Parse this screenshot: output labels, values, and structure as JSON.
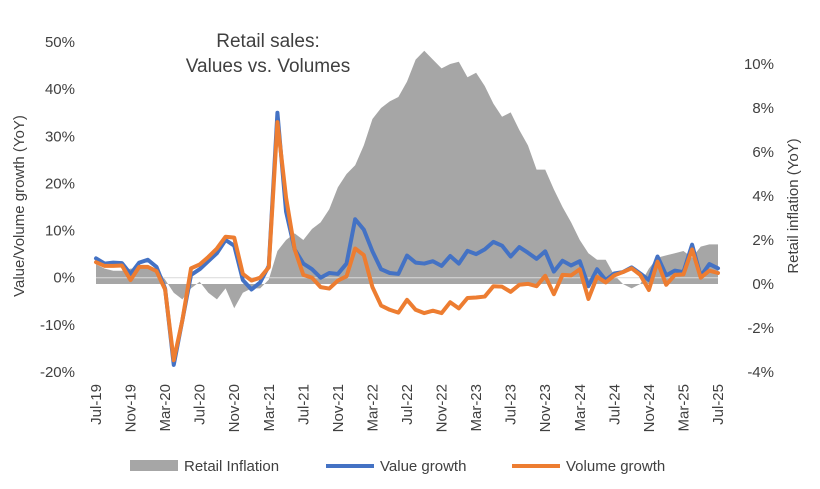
{
  "chart_data": {
    "type": "line",
    "title_lines": [
      "Retail sales:",
      "Values vs. Volumes"
    ],
    "ylabel_left": "Value/Volume  growth (YoY)",
    "ylabel_right": "Retail inflation (YoY)",
    "ylim_left": [
      -20,
      50
    ],
    "ylim_right": [
      -4,
      11
    ],
    "yticks_left": [
      "-20%",
      "-10%",
      "0%",
      "10%",
      "20%",
      "30%",
      "40%",
      "50%"
    ],
    "yticks_right": [
      "-4%",
      "-2%",
      "0%",
      "2%",
      "4%",
      "6%",
      "8%",
      "10%"
    ],
    "x_tick_labels": [
      "Jul-19",
      "Nov-19",
      "Mar-20",
      "Jul-20",
      "Nov-20",
      "Mar-21",
      "Jul-21",
      "Nov-21",
      "Mar-22",
      "Jul-22",
      "Nov-22",
      "Mar-23",
      "Jul-23",
      "Nov-23",
      "Mar-24",
      "Jul-24",
      "Nov-24",
      "Mar-25",
      "Jul-25"
    ],
    "months": 73,
    "legend_position": "bottom",
    "grid": false,
    "colors": {
      "inflation": "#a6a6a6",
      "value": "#4472c4",
      "volume": "#ed7d31"
    },
    "series": [
      {
        "name": "Retail Inflation",
        "axis": "right",
        "kind": "area",
        "values": [
          0.9,
          0.7,
          0.6,
          0.6,
          0.7,
          0.7,
          0.8,
          0.7,
          0.2,
          -0.4,
          -0.7,
          -0.2,
          0.1,
          -0.4,
          -0.7,
          -0.2,
          -1.1,
          -0.4,
          -0.2,
          -0.2,
          0.2,
          1.5,
          2.0,
          2.3,
          2.0,
          2.5,
          2.8,
          3.4,
          4.4,
          5.0,
          5.4,
          6.3,
          7.5,
          8.0,
          8.3,
          8.5,
          9.2,
          10.2,
          10.6,
          10.2,
          9.8,
          10.0,
          10.1,
          9.4,
          9.6,
          9.0,
          8.2,
          7.6,
          7.8,
          7.0,
          6.3,
          5.2,
          5.2,
          4.3,
          3.5,
          2.8,
          2.0,
          1.4,
          1.1,
          1.1,
          0.4,
          0.0,
          -0.2,
          0.0,
          0.7,
          1.2,
          1.3,
          1.4,
          1.5,
          1.2,
          1.7,
          1.8,
          1.8
        ]
      },
      {
        "name": "Value growth",
        "axis": "left",
        "kind": "line",
        "values": [
          4.1,
          3.0,
          3.2,
          3.1,
          0.8,
          3.2,
          3.8,
          2.3,
          -2.3,
          -18.5,
          -9.0,
          0.6,
          1.8,
          3.5,
          5.2,
          8.0,
          6.8,
          -0.5,
          -2.5,
          -1.0,
          2.5,
          35.0,
          14.0,
          6.0,
          3.0,
          1.8,
          0.0,
          1.0,
          0.8,
          3.0,
          12.4,
          10.2,
          5.6,
          1.8,
          1.0,
          0.8,
          4.7,
          3.2,
          3.0,
          3.5,
          2.5,
          4.6,
          3.0,
          5.7,
          5.0,
          6.0,
          7.6,
          6.8,
          4.5,
          6.5,
          5.3,
          4.0,
          5.6,
          1.3,
          3.6,
          2.6,
          3.5,
          -1.8,
          1.8,
          -0.5,
          0.9,
          1.2,
          2.2,
          0.9,
          -0.5,
          4.5,
          0.5,
          1.5,
          1.2,
          7.0,
          0.3,
          2.9,
          2.0
        ]
      },
      {
        "name": "Volume growth",
        "axis": "left",
        "kind": "line",
        "values": [
          3.3,
          2.5,
          2.5,
          2.6,
          -0.5,
          2.3,
          2.3,
          1.4,
          -2.5,
          -17.5,
          -9.0,
          2.0,
          2.8,
          4.4,
          6.2,
          8.7,
          8.5,
          0.8,
          -0.6,
          0.0,
          2.2,
          33.0,
          17.0,
          6.0,
          0.6,
          0.0,
          -2.0,
          -2.3,
          -0.6,
          0.3,
          6.2,
          4.8,
          -2.0,
          -5.9,
          -6.8,
          -7.4,
          -4.7,
          -6.8,
          -7.5,
          -7.0,
          -7.5,
          -5.2,
          -6.5,
          -4.3,
          -4.2,
          -4.0,
          -1.8,
          -1.9,
          -3.0,
          -1.5,
          -1.3,
          -1.8,
          0.4,
          -3.5,
          0.6,
          0.5,
          1.8,
          -4.5,
          0.2,
          -1.0,
          0.5,
          1.2,
          2.0,
          0.6,
          -2.6,
          3.4,
          -1.5,
          0.6,
          0.7,
          6.0,
          0.0,
          1.5,
          1.0
        ]
      }
    ]
  }
}
